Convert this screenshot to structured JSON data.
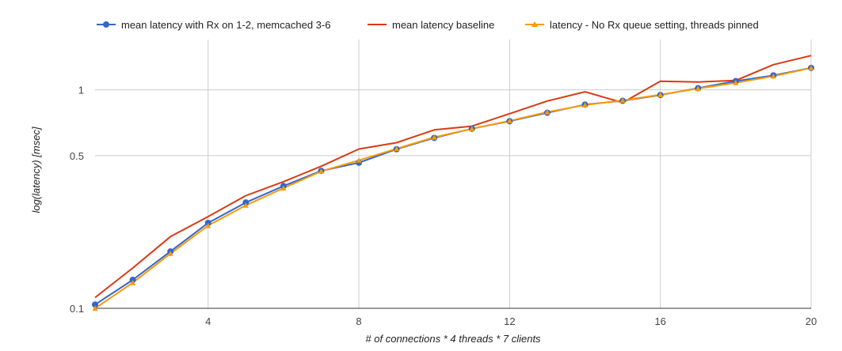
{
  "chart_data": {
    "type": "line",
    "title": "",
    "xlabel": "# of connections * 4 threads * 7 clients",
    "ylabel": "log(latency) [msec]",
    "yscale": "log",
    "xlim": [
      1,
      20
    ],
    "ylim": [
      0.1,
      1.7
    ],
    "grid": true,
    "legend_position": "top",
    "x": [
      1,
      2,
      3,
      4,
      5,
      6,
      7,
      8,
      9,
      10,
      11,
      12,
      13,
      14,
      15,
      16,
      17,
      18,
      19,
      20
    ],
    "x_ticks": [
      4,
      8,
      12,
      16,
      20
    ],
    "x_tick_labels": [
      "4",
      "8",
      "12",
      "16",
      "20"
    ],
    "y_ticks": [
      0.1,
      0.5,
      1
    ],
    "y_tick_labels": [
      "0.1",
      "0.5",
      "1"
    ],
    "series": [
      {
        "name": "mean latency with Rx on 1-2, memcached 3-6",
        "color": "#3366cc",
        "marker": "circle",
        "values": [
          0.104,
          0.135,
          0.182,
          0.246,
          0.305,
          0.363,
          0.426,
          0.464,
          0.535,
          0.603,
          0.664,
          0.719,
          0.786,
          0.856,
          0.891,
          0.947,
          1.018,
          1.097,
          1.165,
          1.26
        ]
      },
      {
        "name": "mean latency baseline",
        "color": "#dc3912",
        "marker": "none",
        "values": [
          0.112,
          0.153,
          0.213,
          0.263,
          0.328,
          0.38,
          0.447,
          0.536,
          0.573,
          0.656,
          0.682,
          0.778,
          0.889,
          0.98,
          0.874,
          1.095,
          1.087,
          1.104,
          1.304,
          1.435
        ]
      },
      {
        "name": "latency - No Rx queue setting, threads pinned",
        "color": "#ff9900",
        "marker": "triangle",
        "values": [
          0.1,
          0.131,
          0.178,
          0.239,
          0.296,
          0.355,
          0.424,
          0.476,
          0.538,
          0.607,
          0.664,
          0.722,
          0.792,
          0.852,
          0.895,
          0.95,
          1.014,
          1.078,
          1.155,
          1.259
        ]
      }
    ]
  }
}
